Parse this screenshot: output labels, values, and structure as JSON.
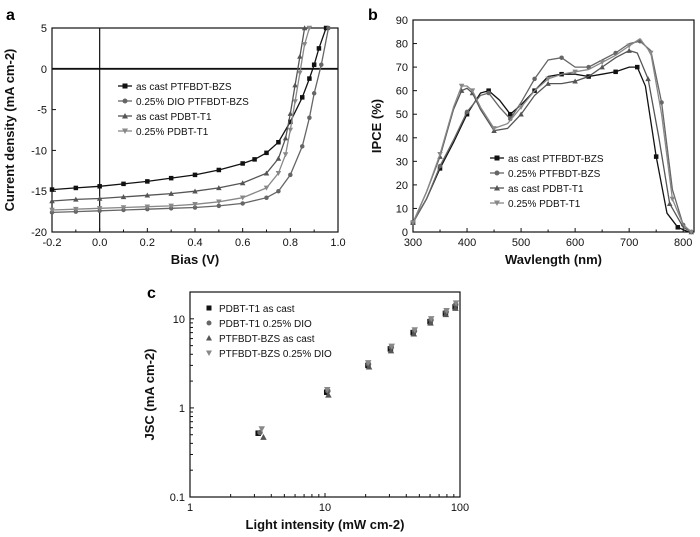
{
  "chart_data": [
    {
      "panel": "a",
      "type": "line",
      "xlabel": "Bias (V)",
      "ylabel": "Current density (mA cm-2)",
      "xlim": [
        -0.2,
        1.0
      ],
      "ylim": [
        -20,
        5
      ],
      "xticks": [
        "-0.2",
        "0.0",
        "0.2",
        "0.4",
        "0.6",
        "0.8",
        "1.0"
      ],
      "yticks": [
        "-20",
        "-15",
        "-10",
        "-5",
        "0",
        "5"
      ],
      "legend_position": "upper-left",
      "series": [
        {
          "name": "as cast  PTFBDT-BZS",
          "marker": "square",
          "color": "#111111",
          "x": [
            -0.2,
            -0.1,
            0.0,
            0.1,
            0.2,
            0.3,
            0.4,
            0.5,
            0.6,
            0.65,
            0.7,
            0.75,
            0.8,
            0.85,
            0.88,
            0.9,
            0.92,
            0.95
          ],
          "y": [
            -14.8,
            -14.6,
            -14.4,
            -14.1,
            -13.8,
            -13.4,
            -13.0,
            -12.4,
            -11.6,
            -11.1,
            -10.3,
            -9.0,
            -6.5,
            -3.5,
            -1.2,
            0.5,
            2.5,
            5
          ]
        },
        {
          "name": "0.25% DIO PTFBDT-BZS",
          "marker": "circle",
          "color": "#666666",
          "x": [
            -0.2,
            -0.1,
            0.0,
            0.1,
            0.2,
            0.3,
            0.4,
            0.5,
            0.6,
            0.7,
            0.75,
            0.8,
            0.85,
            0.88,
            0.9,
            0.93,
            0.96
          ],
          "y": [
            -17.6,
            -17.5,
            -17.4,
            -17.3,
            -17.2,
            -17.1,
            -17.0,
            -16.8,
            -16.5,
            -15.8,
            -15.0,
            -13.0,
            -9.5,
            -6.0,
            -3.0,
            0.5,
            5
          ]
        },
        {
          "name": "as cast PDBT-T1",
          "marker": "triangle-up",
          "color": "#555555",
          "x": [
            -0.2,
            -0.1,
            0.0,
            0.1,
            0.2,
            0.3,
            0.4,
            0.5,
            0.6,
            0.7,
            0.75,
            0.78,
            0.8,
            0.82,
            0.84,
            0.86
          ],
          "y": [
            -16.2,
            -16.0,
            -15.9,
            -15.7,
            -15.5,
            -15.3,
            -15.0,
            -14.6,
            -14.0,
            -12.8,
            -11.0,
            -8.5,
            -5.5,
            -2.0,
            1.5,
            5
          ]
        },
        {
          "name": "0.25% PDBT-T1",
          "marker": "triangle-down",
          "color": "#888888",
          "x": [
            -0.2,
            -0.1,
            0.0,
            0.1,
            0.2,
            0.3,
            0.4,
            0.5,
            0.6,
            0.7,
            0.75,
            0.78,
            0.8,
            0.82,
            0.84,
            0.86,
            0.88
          ],
          "y": [
            -17.3,
            -17.2,
            -17.1,
            -17.0,
            -16.9,
            -16.8,
            -16.6,
            -16.3,
            -15.8,
            -14.6,
            -12.8,
            -10.5,
            -7.5,
            -4.0,
            -0.5,
            3.0,
            5
          ]
        }
      ]
    },
    {
      "panel": "b",
      "type": "line",
      "xlabel": "Wavlength (nm)",
      "ylabel": "IPCE (%)",
      "xlim": [
        300,
        820
      ],
      "ylim": [
        0,
        90
      ],
      "xticks": [
        "300",
        "400",
        "500",
        "600",
        "700",
        "800"
      ],
      "yticks": [
        "0",
        "10",
        "20",
        "30",
        "40",
        "50",
        "60",
        "70",
        "80",
        "90"
      ],
      "legend_position": "lower-center",
      "series": [
        {
          "name": "as cast PTFBDT-BZS",
          "marker": "square",
          "color": "#111111",
          "x": [
            300,
            325,
            350,
            375,
            400,
            425,
            440,
            460,
            480,
            500,
            525,
            550,
            575,
            600,
            625,
            650,
            675,
            700,
            715,
            730,
            750,
            770,
            790,
            810
          ],
          "y": [
            4,
            14,
            27,
            38,
            50,
            59,
            60,
            56,
            50,
            54,
            60,
            66,
            67,
            67,
            66,
            67,
            68,
            70,
            70,
            62,
            32,
            8,
            2,
            0
          ]
        },
        {
          "name": "0.25% PTFBDT-BZS",
          "marker": "circle",
          "color": "#666666",
          "x": [
            300,
            325,
            350,
            375,
            400,
            425,
            440,
            460,
            480,
            500,
            525,
            550,
            575,
            600,
            625,
            650,
            675,
            700,
            720,
            740,
            760,
            780,
            800,
            815
          ],
          "y": [
            4,
            14,
            28,
            39,
            51,
            58,
            59,
            53,
            48,
            55,
            65,
            73,
            74,
            70,
            70,
            73,
            76,
            80,
            81,
            77,
            55,
            18,
            3,
            0
          ]
        },
        {
          "name": "as cast PDBT-T1",
          "marker": "triangle-up",
          "color": "#555555",
          "x": [
            300,
            325,
            350,
            375,
            390,
            400,
            410,
            425,
            450,
            475,
            500,
            525,
            550,
            575,
            600,
            625,
            650,
            675,
            700,
            715,
            735,
            755,
            775,
            800,
            815
          ],
          "y": [
            4,
            17,
            32,
            52,
            60,
            61,
            59,
            52,
            43,
            44,
            50,
            58,
            63,
            63,
            64,
            66,
            70,
            74,
            77,
            76,
            65,
            40,
            12,
            2,
            0
          ]
        },
        {
          "name": "0.25% PDBT-T1",
          "marker": "triangle-down",
          "color": "#888888",
          "x": [
            300,
            325,
            350,
            375,
            390,
            400,
            410,
            425,
            450,
            475,
            500,
            525,
            550,
            575,
            600,
            625,
            650,
            675,
            700,
            720,
            740,
            760,
            780,
            800,
            815
          ],
          "y": [
            4,
            17,
            33,
            53,
            62,
            62,
            60,
            53,
            44,
            46,
            53,
            60,
            65,
            67,
            68,
            69,
            72,
            75,
            79,
            82,
            76,
            50,
            14,
            3,
            0
          ]
        }
      ]
    },
    {
      "panel": "c",
      "type": "scatter",
      "xlabel": "Light intensity (mW cm-2)",
      "ylabel": "JSC (mA cm-2)",
      "xscale": "log",
      "yscale": "log",
      "xlim": [
        1,
        100
      ],
      "ylim": [
        0.1,
        20
      ],
      "xticks": [
        "1",
        "10",
        "100"
      ],
      "yticks": [
        "0.1",
        "1",
        "10"
      ],
      "legend_position": "upper-left",
      "series": [
        {
          "name": "PDBT-T1 as cast",
          "marker": "square",
          "color": "#111111",
          "x": [
            3.2,
            10.3,
            20.8,
            30.5,
            45,
            60,
            78,
            92
          ],
          "y": [
            0.52,
            1.5,
            3.0,
            4.6,
            7.0,
            9.3,
            11.5,
            13.6
          ]
        },
        {
          "name": "PDBT-T1 0.25% DIO",
          "marker": "circle",
          "color": "#666666",
          "x": [
            3.3,
            10.5,
            21,
            31,
            46,
            61,
            79,
            93
          ],
          "y": [
            0.53,
            1.55,
            3.1,
            4.8,
            7.3,
            9.7,
            12.0,
            14.5
          ]
        },
        {
          "name": "PTFBDT-BZS as cast",
          "marker": "triangle-up",
          "color": "#555555",
          "x": [
            3.5,
            10.6,
            21.2,
            30.8,
            45.5,
            60.5,
            78.5,
            92.5
          ],
          "y": [
            0.47,
            1.4,
            2.9,
            4.4,
            6.8,
            9.0,
            11.2,
            13.2
          ]
        },
        {
          "name": "PTFBDT-BZS 0.25% DIO",
          "marker": "triangle-down",
          "color": "#888888",
          "x": [
            3.4,
            10.4,
            20.9,
            31.2,
            46.2,
            61.2,
            79.5,
            93.5
          ],
          "y": [
            0.58,
            1.6,
            3.2,
            4.9,
            7.5,
            10.0,
            12.3,
            15.0
          ]
        }
      ]
    }
  ],
  "panel_letters": {
    "a": "a",
    "b": "b",
    "c": "c"
  }
}
